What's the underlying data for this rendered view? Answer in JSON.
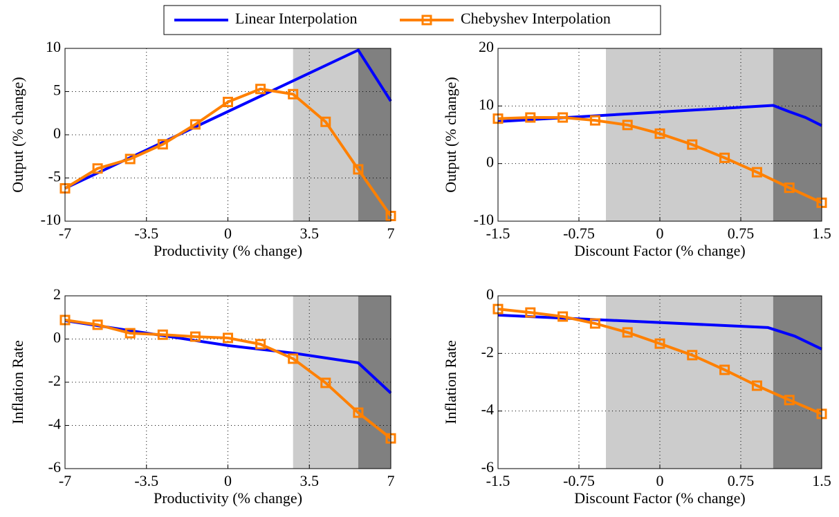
{
  "chart_data": [
    {
      "type": "line",
      "xlabel": "Productivity (% change)",
      "ylabel": "Output (% change)",
      "xlim": [
        -7,
        7
      ],
      "ylim": [
        -10,
        10
      ],
      "xticks": [
        -7,
        -3.5,
        0,
        3.5,
        7
      ],
      "yticks": [
        -10,
        -5,
        0,
        5,
        10
      ],
      "grid": true,
      "shaded_regions": [
        {
          "x": [
            2.8,
            5.6
          ],
          "color": "#cccccc"
        },
        {
          "x": [
            5.6,
            7
          ],
          "color": "#808080"
        }
      ],
      "series": [
        {
          "name": "Linear Interpolation",
          "color": "#0000ff",
          "x": [
            -7,
            5.6,
            7
          ],
          "values": [
            -6.2,
            9.8,
            3.9
          ]
        },
        {
          "name": "Chebyshev Interpolation",
          "color": "#ff8000",
          "marker": "square",
          "x": [
            -7,
            -5.6,
            -4.2,
            -2.8,
            -1.4,
            0,
            1.4,
            2.8,
            4.2,
            5.6,
            7
          ],
          "values": [
            -6.2,
            -3.9,
            -2.8,
            -1.1,
            1.2,
            3.8,
            5.3,
            4.7,
            1.5,
            -4.0,
            -9.4
          ]
        }
      ]
    },
    {
      "type": "line",
      "xlabel": "Discount Factor (% change)",
      "ylabel": "Output (% change)",
      "xlim": [
        -1.5,
        1.5
      ],
      "ylim": [
        -10,
        20
      ],
      "xticks": [
        -1.5,
        -0.75,
        0,
        0.75,
        1.5
      ],
      "yticks": [
        -10,
        0,
        10,
        20
      ],
      "grid": true,
      "shaded_regions": [
        {
          "x": [
            -0.5,
            1.05
          ],
          "color": "#cccccc"
        },
        {
          "x": [
            1.05,
            1.5
          ],
          "color": "#808080"
        }
      ],
      "series": [
        {
          "name": "Linear Interpolation",
          "color": "#0000ff",
          "x": [
            -1.5,
            1.05,
            1.2,
            1.35,
            1.5
          ],
          "values": [
            7.3,
            10.1,
            9.0,
            8.0,
            6.6
          ]
        },
        {
          "name": "Chebyshev Interpolation",
          "color": "#ff8000",
          "marker": "square",
          "x": [
            -1.5,
            -1.2,
            -0.9,
            -0.6,
            -0.3,
            0,
            0.3,
            0.6,
            0.9,
            1.2,
            1.5
          ],
          "values": [
            7.8,
            8.0,
            8.0,
            7.5,
            6.7,
            5.2,
            3.3,
            1.0,
            -1.5,
            -4.2,
            -6.8
          ]
        }
      ]
    },
    {
      "type": "line",
      "xlabel": "Productivity (% change)",
      "ylabel": "Inflation Rate",
      "xlim": [
        -7,
        7
      ],
      "ylim": [
        -6,
        2
      ],
      "xticks": [
        -7,
        -3.5,
        0,
        3.5,
        7
      ],
      "yticks": [
        -6,
        -4,
        -2,
        0,
        2
      ],
      "grid": true,
      "shaded_regions": [
        {
          "x": [
            2.8,
            5.6
          ],
          "color": "#cccccc"
        },
        {
          "x": [
            5.6,
            7
          ],
          "color": "#808080"
        }
      ],
      "series": [
        {
          "name": "Linear Interpolation",
          "color": "#0000ff",
          "x": [
            -7,
            0,
            2.8,
            5.6,
            7
          ],
          "values": [
            0.85,
            -0.3,
            -0.65,
            -1.1,
            -2.5
          ]
        },
        {
          "name": "Chebyshev Interpolation",
          "color": "#ff8000",
          "marker": "square",
          "x": [
            -7,
            -5.6,
            -4.2,
            -2.8,
            -1.4,
            0,
            1.4,
            2.8,
            4.2,
            5.6,
            7
          ],
          "values": [
            0.88,
            0.66,
            0.27,
            0.2,
            0.11,
            0.05,
            -0.24,
            -0.91,
            -2.03,
            -3.41,
            -4.6
          ]
        }
      ]
    },
    {
      "type": "line",
      "xlabel": "Discount Factor (% change)",
      "ylabel": "Inflation Rate",
      "xlim": [
        -1.5,
        1.5
      ],
      "ylim": [
        -6,
        0
      ],
      "xticks": [
        -1.5,
        -0.75,
        0,
        0.75,
        1.5
      ],
      "yticks": [
        -6,
        -4,
        -2,
        0
      ],
      "grid": true,
      "shaded_regions": [
        {
          "x": [
            -0.5,
            1.05
          ],
          "color": "#cccccc"
        },
        {
          "x": [
            1.05,
            1.5
          ],
          "color": "#808080"
        }
      ],
      "series": [
        {
          "name": "Linear Interpolation",
          "color": "#0000ff",
          "x": [
            -1.5,
            1.0,
            1.25,
            1.5
          ],
          "values": [
            -0.67,
            -1.1,
            -1.4,
            -1.85
          ]
        },
        {
          "name": "Chebyshev Interpolation",
          "color": "#ff8000",
          "marker": "square",
          "x": [
            -1.5,
            -1.2,
            -0.9,
            -0.6,
            -0.3,
            0,
            0.3,
            0.6,
            0.9,
            1.2,
            1.5
          ],
          "values": [
            -0.46,
            -0.58,
            -0.72,
            -0.96,
            -1.27,
            -1.66,
            -2.06,
            -2.57,
            -3.12,
            -3.62,
            -4.1
          ]
        }
      ]
    }
  ]
}
